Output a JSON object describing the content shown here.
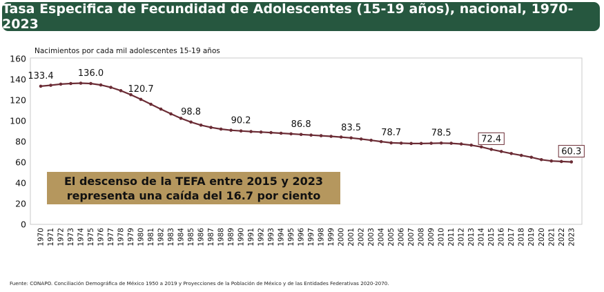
{
  "title": "Tasa Especifica de Fecundidad de Adolescentes (15-19 años), nacional, 1970-2023",
  "callout": {
    "line1": "El descenso de la TEFA entre 2015 y 2023",
    "line2": "representa una caída del 16.7 por ciento"
  },
  "source": "Fuente: CONAPO. Conciliación Demográfica de México 1950 a 2019 y Proyecciones de la Población de México y de las Entidades Federativas 2020-2070.",
  "colors": {
    "title_bg": "#26573f",
    "line": "#6b2c35",
    "callout_bg": "#b5975e"
  },
  "chart_data": {
    "type": "line",
    "ylabel": "Nacimientos por cada mil adolescentes 15-19 años",
    "ylim": [
      0,
      160
    ],
    "yticks": [
      0,
      20,
      40,
      60,
      80,
      100,
      120,
      140,
      160
    ],
    "grid": false,
    "x": [
      1970,
      1971,
      1972,
      1973,
      1974,
      1975,
      1976,
      1977,
      1978,
      1979,
      1980,
      1981,
      1982,
      1983,
      1984,
      1985,
      1986,
      1987,
      1988,
      1989,
      1990,
      1991,
      1992,
      1993,
      1994,
      1995,
      1996,
      1997,
      1998,
      1999,
      2000,
      2001,
      2002,
      2003,
      2004,
      2005,
      2006,
      2007,
      2008,
      2009,
      2010,
      2011,
      2012,
      2013,
      2014,
      2015,
      2016,
      2017,
      2018,
      2019,
      2020,
      2021,
      2022,
      2023
    ],
    "values": [
      133.4,
      134.3,
      135.4,
      136.0,
      136.3,
      136.0,
      134.6,
      132.3,
      129.1,
      125.2,
      120.7,
      116.0,
      111.3,
      106.7,
      102.4,
      98.8,
      95.8,
      93.6,
      92.0,
      90.9,
      90.2,
      89.6,
      89.1,
      88.6,
      88.0,
      87.4,
      86.8,
      86.2,
      85.6,
      85.0,
      84.3,
      83.5,
      82.4,
      81.2,
      79.9,
      78.7,
      78.4,
      78.1,
      78.1,
      78.3,
      78.5,
      78.3,
      77.6,
      76.5,
      74.8,
      72.4,
      70.4,
      68.4,
      66.6,
      64.8,
      62.5,
      61.2,
      60.7,
      60.3
    ],
    "labeled_points": [
      {
        "year": 1970,
        "label": "133.4",
        "boxed": false
      },
      {
        "year": 1975,
        "label": "136.0",
        "boxed": false
      },
      {
        "year": 1980,
        "label": "120.7",
        "boxed": false
      },
      {
        "year": 1985,
        "label": "98.8",
        "boxed": false
      },
      {
        "year": 1990,
        "label": "90.2",
        "boxed": false
      },
      {
        "year": 1996,
        "label": "86.8",
        "boxed": false
      },
      {
        "year": 2001,
        "label": "83.5",
        "boxed": false
      },
      {
        "year": 2005,
        "label": "78.7",
        "boxed": false
      },
      {
        "year": 2010,
        "label": "78.5",
        "boxed": false
      },
      {
        "year": 2015,
        "label": "72.4",
        "boxed": true
      },
      {
        "year": 2023,
        "label": "60.3",
        "boxed": true
      }
    ]
  }
}
